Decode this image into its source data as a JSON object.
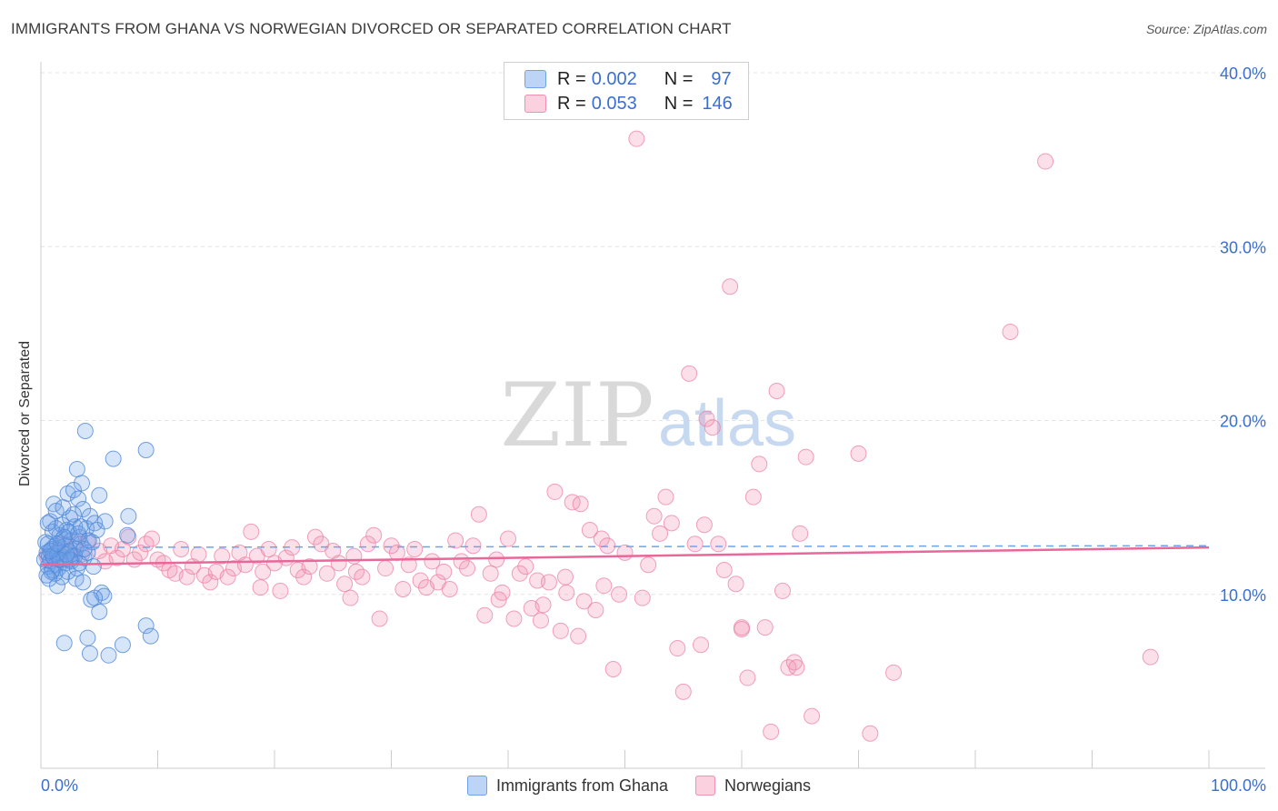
{
  "title": "IMMIGRANTS FROM GHANA VS NORWEGIAN DIVORCED OR SEPARATED CORRELATION CHART",
  "source": "Source: ZipAtlas.com",
  "watermark": {
    "zip": "ZIP",
    "atlas": "atlas"
  },
  "legend": {
    "r_label": "R =",
    "n_label": "N =",
    "ghana": {
      "r": "0.002",
      "n": "97",
      "color": "#6fa3e8"
    },
    "norwegians": {
      "r": "0.053",
      "n": "146",
      "color": "#f08fb0"
    }
  },
  "bottom_legend": {
    "ghana": "Immigrants from Ghana",
    "norwegians": "Norwegians"
  },
  "chart_data": {
    "type": "scatter",
    "title": "IMMIGRANTS FROM GHANA VS NORWEGIAN DIVORCED OR SEPARATED CORRELATION CHART",
    "xlabel": "",
    "ylabel": "Divorced or Separated",
    "xlim": [
      0,
      100
    ],
    "ylim": [
      0,
      40
    ],
    "x_tick_labels": [
      "0.0%",
      "100.0%"
    ],
    "y_ticks": [
      10,
      20,
      30,
      40
    ],
    "y_tick_labels": [
      "10.0%",
      "20.0%",
      "30.0%",
      "40.0%"
    ],
    "grid": true,
    "series": [
      {
        "name": "Immigrants from Ghana",
        "color": "#6fa3e8",
        "trend": {
          "x": [
            0,
            100
          ],
          "y": [
            12.7,
            12.8
          ],
          "style": "dashed"
        },
        "points": [
          [
            0.3,
            12.0
          ],
          [
            0.5,
            12.4
          ],
          [
            0.6,
            11.6
          ],
          [
            0.7,
            12.2
          ],
          [
            0.8,
            11.9
          ],
          [
            0.9,
            12.6
          ],
          [
            1.0,
            11.4
          ],
          [
            1.1,
            12.1
          ],
          [
            1.2,
            12.8
          ],
          [
            1.3,
            11.7
          ],
          [
            0.4,
            13.0
          ],
          [
            0.6,
            12.9
          ],
          [
            0.8,
            14.2
          ],
          [
            1.0,
            13.6
          ],
          [
            1.1,
            15.2
          ],
          [
            1.3,
            14.8
          ],
          [
            1.4,
            12.3
          ],
          [
            1.5,
            11.5
          ],
          [
            1.6,
            13.4
          ],
          [
            1.7,
            12.7
          ],
          [
            1.8,
            14.0
          ],
          [
            1.9,
            13.2
          ],
          [
            2.0,
            12.0
          ],
          [
            2.1,
            11.8
          ],
          [
            2.2,
            13.7
          ],
          [
            2.3,
            15.8
          ],
          [
            2.4,
            12.5
          ],
          [
            2.5,
            14.4
          ],
          [
            2.6,
            13.1
          ],
          [
            2.7,
            12.2
          ],
          [
            2.8,
            16.0
          ],
          [
            2.9,
            13.9
          ],
          [
            3.0,
            12.6
          ],
          [
            3.1,
            17.2
          ],
          [
            3.2,
            15.5
          ],
          [
            3.3,
            13.3
          ],
          [
            3.4,
            12.9
          ],
          [
            3.5,
            16.4
          ],
          [
            3.6,
            14.9
          ],
          [
            3.7,
            12.1
          ],
          [
            3.8,
            19.4
          ],
          [
            3.9,
            13.8
          ],
          [
            4.0,
            12.4
          ],
          [
            4.2,
            14.5
          ],
          [
            4.4,
            13.0
          ],
          [
            4.6,
            14.1
          ],
          [
            4.8,
            13.7
          ],
          [
            5.0,
            15.7
          ],
          [
            5.2,
            10.1
          ],
          [
            5.4,
            9.9
          ],
          [
            4.3,
            9.7
          ],
          [
            4.6,
            9.8
          ],
          [
            5.0,
            9.0
          ],
          [
            5.5,
            14.2
          ],
          [
            6.2,
            17.8
          ],
          [
            7.4,
            13.4
          ],
          [
            7.5,
            14.5
          ],
          [
            9.0,
            8.2
          ],
          [
            9.4,
            7.6
          ],
          [
            9.0,
            18.3
          ],
          [
            2.0,
            7.2
          ],
          [
            4.0,
            7.5
          ],
          [
            4.2,
            6.6
          ],
          [
            5.8,
            6.5
          ],
          [
            7.0,
            7.1
          ],
          [
            1.4,
            10.5
          ],
          [
            1.8,
            11.0
          ],
          [
            2.3,
            11.3
          ],
          [
            2.6,
            11.9
          ],
          [
            3.0,
            10.9
          ],
          [
            3.6,
            10.7
          ],
          [
            1.2,
            11.2
          ],
          [
            0.9,
            11.3
          ],
          [
            0.5,
            11.1
          ],
          [
            0.7,
            10.9
          ],
          [
            1.5,
            12.4
          ],
          [
            2.1,
            12.8
          ],
          [
            2.4,
            13.6
          ],
          [
            2.9,
            12.2
          ],
          [
            3.3,
            11.8
          ],
          [
            3.7,
            12.6
          ],
          [
            4.1,
            13.1
          ],
          [
            1.0,
            12.2
          ],
          [
            1.6,
            12.0
          ],
          [
            2.0,
            13.3
          ],
          [
            2.8,
            14.6
          ],
          [
            3.2,
            13.5
          ],
          [
            1.3,
            13.8
          ],
          [
            0.6,
            14.1
          ],
          [
            1.9,
            15.0
          ],
          [
            2.5,
            12.0
          ],
          [
            3.1,
            11.5
          ],
          [
            0.8,
            12.5
          ],
          [
            1.4,
            12.9
          ],
          [
            2.2,
            12.3
          ],
          [
            3.4,
            13.9
          ],
          [
            4.5,
            11.6
          ]
        ]
      },
      {
        "name": "Norwegians",
        "color": "#f08fb0",
        "trend": {
          "x": [
            0,
            100
          ],
          "y": [
            11.7,
            12.7
          ],
          "style": "solid"
        },
        "points": [
          [
            0.5,
            12.2
          ],
          [
            1.0,
            12.6
          ],
          [
            1.5,
            12.0
          ],
          [
            2.0,
            12.9
          ],
          [
            2.5,
            12.4
          ],
          [
            3.0,
            13.0
          ],
          [
            3.5,
            12.3
          ],
          [
            4.0,
            13.1
          ],
          [
            5.0,
            12.5
          ],
          [
            5.5,
            11.9
          ],
          [
            6.0,
            12.8
          ],
          [
            6.5,
            12.1
          ],
          [
            7.0,
            12.6
          ],
          [
            7.5,
            13.3
          ],
          [
            8.0,
            12.0
          ],
          [
            8.5,
            12.4
          ],
          [
            9.0,
            12.9
          ],
          [
            9.5,
            13.2
          ],
          [
            10.0,
            12.0
          ],
          [
            10.5,
            11.8
          ],
          [
            11.0,
            11.4
          ],
          [
            11.5,
            11.2
          ],
          [
            12.0,
            12.6
          ],
          [
            12.5,
            11.0
          ],
          [
            13.0,
            11.6
          ],
          [
            13.5,
            12.3
          ],
          [
            14.0,
            11.1
          ],
          [
            14.5,
            10.7
          ],
          [
            15.0,
            11.3
          ],
          [
            15.5,
            12.2
          ],
          [
            16.0,
            11.0
          ],
          [
            16.5,
            11.5
          ],
          [
            17.0,
            12.4
          ],
          [
            17.5,
            11.7
          ],
          [
            18.0,
            13.6
          ],
          [
            18.5,
            12.2
          ],
          [
            19.0,
            11.3
          ],
          [
            19.5,
            12.6
          ],
          [
            20.0,
            11.8
          ],
          [
            20.5,
            10.2
          ],
          [
            21.0,
            12.1
          ],
          [
            21.5,
            12.7
          ],
          [
            22.0,
            11.4
          ],
          [
            22.5,
            11.0
          ],
          [
            23.0,
            11.6
          ],
          [
            23.5,
            13.3
          ],
          [
            24.0,
            12.9
          ],
          [
            24.5,
            11.2
          ],
          [
            25.0,
            12.5
          ],
          [
            25.5,
            11.8
          ],
          [
            26.0,
            10.6
          ],
          [
            26.5,
            9.8
          ],
          [
            27.0,
            11.3
          ],
          [
            27.5,
            11.0
          ],
          [
            28.0,
            12.9
          ],
          [
            28.5,
            13.4
          ],
          [
            29.0,
            8.6
          ],
          [
            29.5,
            11.5
          ],
          [
            30.0,
            12.8
          ],
          [
            30.5,
            12.4
          ],
          [
            31.0,
            10.3
          ],
          [
            31.5,
            11.7
          ],
          [
            32.0,
            12.6
          ],
          [
            32.5,
            10.8
          ],
          [
            33.0,
            10.4
          ],
          [
            33.5,
            11.9
          ],
          [
            34.0,
            10.7
          ],
          [
            34.5,
            11.3
          ],
          [
            35.0,
            10.3
          ],
          [
            35.5,
            13.1
          ],
          [
            36.0,
            11.9
          ],
          [
            36.5,
            11.5
          ],
          [
            37.0,
            12.8
          ],
          [
            37.5,
            14.6
          ],
          [
            38.0,
            8.8
          ],
          [
            38.5,
            11.2
          ],
          [
            39.0,
            12.0
          ],
          [
            39.5,
            10.1
          ],
          [
            40.0,
            13.2
          ],
          [
            40.5,
            8.6
          ],
          [
            41.0,
            11.2
          ],
          [
            41.5,
            11.6
          ],
          [
            42.0,
            9.2
          ],
          [
            42.5,
            10.8
          ],
          [
            43.0,
            9.4
          ],
          [
            43.5,
            10.7
          ],
          [
            44.0,
            15.9
          ],
          [
            44.5,
            7.9
          ],
          [
            45.0,
            10.1
          ],
          [
            45.5,
            15.3
          ],
          [
            46.0,
            7.6
          ],
          [
            46.5,
            9.6
          ],
          [
            47.0,
            13.7
          ],
          [
            47.5,
            9.1
          ],
          [
            48.0,
            13.2
          ],
          [
            48.5,
            12.8
          ],
          [
            49.0,
            5.7
          ],
          [
            49.5,
            10.0
          ],
          [
            50.0,
            12.4
          ],
          [
            51.0,
            36.2
          ],
          [
            51.5,
            9.8
          ],
          [
            52.0,
            11.7
          ],
          [
            52.5,
            14.5
          ],
          [
            53.0,
            13.5
          ],
          [
            53.5,
            15.6
          ],
          [
            54.0,
            14.1
          ],
          [
            54.5,
            6.9
          ],
          [
            55.0,
            4.4
          ],
          [
            55.5,
            22.7
          ],
          [
            56.0,
            12.9
          ],
          [
            56.5,
            7.1
          ],
          [
            57.0,
            20.1
          ],
          [
            57.5,
            19.6
          ],
          [
            58.0,
            12.9
          ],
          [
            58.5,
            11.4
          ],
          [
            59.0,
            27.7
          ],
          [
            59.5,
            10.6
          ],
          [
            60.0,
            8.1
          ],
          [
            60.5,
            5.2
          ],
          [
            61.0,
            15.6
          ],
          [
            61.5,
            17.5
          ],
          [
            62.0,
            8.1
          ],
          [
            62.5,
            2.1
          ],
          [
            63.0,
            21.7
          ],
          [
            63.5,
            10.2
          ],
          [
            64.0,
            5.8
          ],
          [
            64.5,
            6.1
          ],
          [
            65.0,
            13.5
          ],
          [
            65.5,
            17.9
          ],
          [
            66.0,
            3.0
          ],
          [
            70.0,
            18.1
          ],
          [
            71.0,
            2.0
          ],
          [
            73.0,
            5.5
          ],
          [
            83.0,
            25.1
          ],
          [
            86.0,
            34.9
          ],
          [
            95.0,
            6.4
          ],
          [
            60.0,
            8.0
          ],
          [
            64.7,
            5.8
          ],
          [
            48.2,
            10.5
          ],
          [
            42.8,
            8.5
          ],
          [
            39.2,
            9.7
          ],
          [
            44.9,
            11.0
          ],
          [
            56.8,
            14.0
          ],
          [
            46.2,
            15.2
          ],
          [
            18.8,
            10.4
          ],
          [
            26.8,
            12.2
          ]
        ]
      }
    ]
  }
}
